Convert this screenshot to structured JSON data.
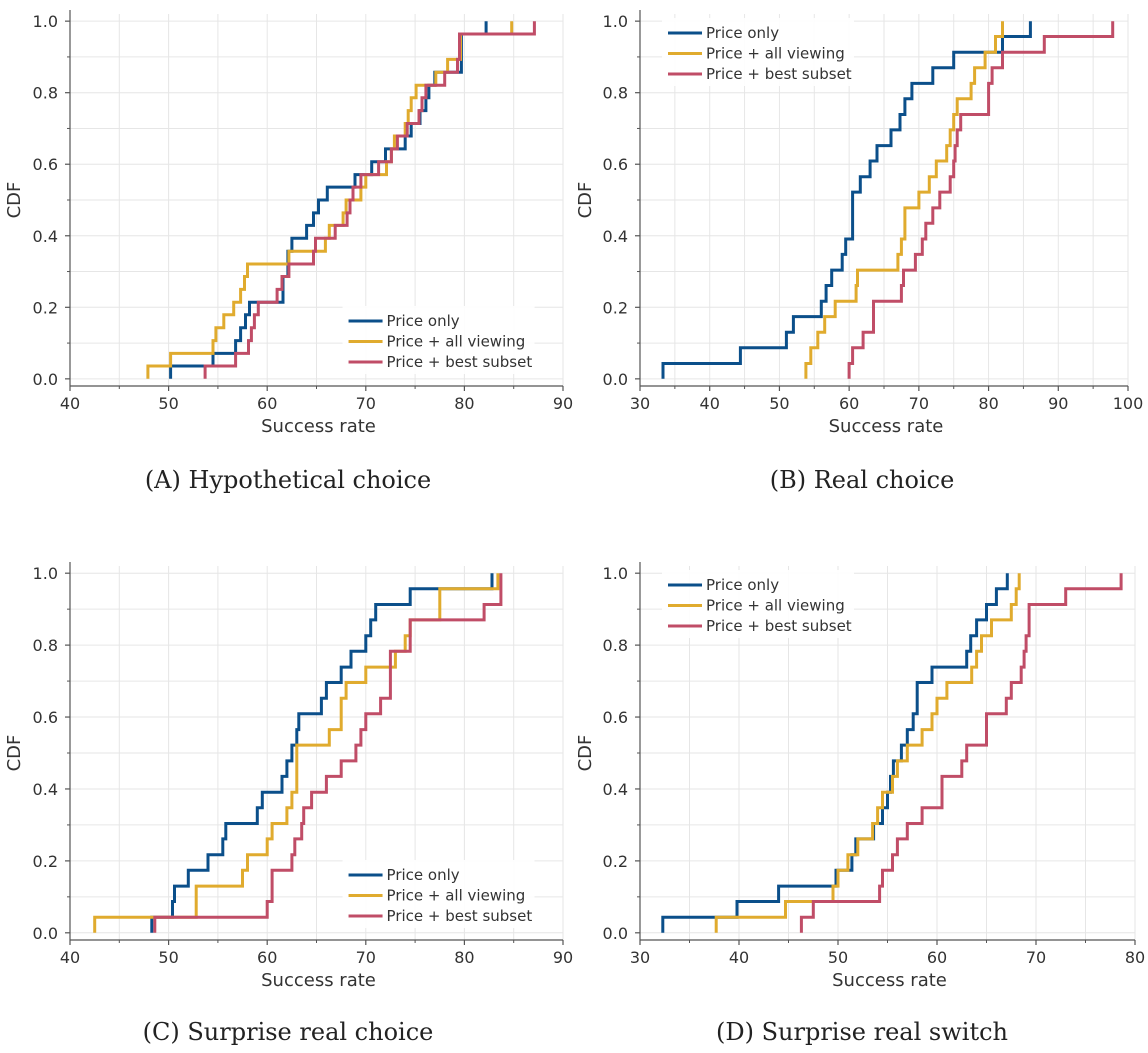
{
  "figure": {
    "panels": [
      {
        "label": "(A)",
        "caption": "Hypothetical choice"
      },
      {
        "label": "(B)",
        "caption": "Real choice"
      },
      {
        "label": "(C)",
        "caption": "Surprise real choice"
      },
      {
        "label": "(D)",
        "caption": "Surprise real switch"
      }
    ]
  },
  "colors": {
    "price_only": "#0b4f8a",
    "price_all_viewing": "#e0ab2e",
    "price_best_subset": "#c04d67",
    "grid": "#e6e6e6",
    "axis": "#555555"
  },
  "chart_data": [
    {
      "type": "line",
      "step": "post",
      "xlabel": "Success rate",
      "ylabel": "CDF",
      "xlim": [
        40,
        90
      ],
      "ylim": [
        0,
        1
      ],
      "xticks": [
        40,
        50,
        60,
        70,
        80,
        90
      ],
      "yticks": [
        0.0,
        0.2,
        0.4,
        0.6,
        0.8,
        1.0
      ],
      "grid": true,
      "legend_position": "bottom-right",
      "series": [
        {
          "name": "Price only",
          "x": [
            50.2,
            54.5,
            56.8,
            57.3,
            57.8,
            58.2,
            61.6,
            62.1,
            62.5,
            64.0,
            64.7,
            65.2,
            66.1,
            68.9,
            70.6,
            72.0,
            74.0,
            74.6,
            75.5,
            76.1,
            76.4,
            77.0,
            79.7,
            82.2
          ],
          "y": [
            0.036,
            0.071,
            0.107,
            0.143,
            0.179,
            0.214,
            0.286,
            0.357,
            0.393,
            0.429,
            0.464,
            0.5,
            0.536,
            0.571,
            0.607,
            0.643,
            0.679,
            0.714,
            0.75,
            0.786,
            0.821,
            0.857,
            0.964,
            1.0
          ]
        },
        {
          "name": "Price + all viewing",
          "x": [
            47.9,
            50.2,
            54.5,
            54.8,
            55.6,
            56.6,
            57.3,
            57.7,
            58.0,
            62.2,
            65.9,
            66.3,
            67.7,
            68.0,
            69.5,
            70.0,
            72.1,
            72.6,
            72.9,
            74.0,
            74.3,
            74.6,
            75.1,
            77.1,
            78.3,
            79.6,
            84.8
          ],
          "y": [
            0.036,
            0.071,
            0.107,
            0.143,
            0.179,
            0.214,
            0.25,
            0.286,
            0.321,
            0.357,
            0.393,
            0.429,
            0.464,
            0.5,
            0.536,
            0.571,
            0.607,
            0.643,
            0.679,
            0.714,
            0.75,
            0.786,
            0.821,
            0.857,
            0.893,
            0.964,
            1.0
          ]
        },
        {
          "name": "Price + best subset",
          "x": [
            53.7,
            56.8,
            58.1,
            58.4,
            58.7,
            59.1,
            61.0,
            61.5,
            62.2,
            64.7,
            64.9,
            66.9,
            68.1,
            68.4,
            68.7,
            69.5,
            71.3,
            72.6,
            73.2,
            74.2,
            75.4,
            75.7,
            76.1,
            78.0,
            79.3,
            79.5,
            87.1
          ],
          "y": [
            0.036,
            0.071,
            0.107,
            0.143,
            0.179,
            0.214,
            0.25,
            0.286,
            0.321,
            0.357,
            0.393,
            0.429,
            0.464,
            0.5,
            0.536,
            0.571,
            0.607,
            0.643,
            0.679,
            0.714,
            0.75,
            0.786,
            0.821,
            0.857,
            0.893,
            0.964,
            1.0
          ]
        }
      ]
    },
    {
      "type": "line",
      "step": "post",
      "xlabel": "Success rate",
      "ylabel": "CDF",
      "xlim": [
        30,
        100
      ],
      "ylim": [
        0,
        1
      ],
      "xticks": [
        30,
        40,
        50,
        60,
        70,
        80,
        90,
        100
      ],
      "yticks": [
        0.0,
        0.2,
        0.4,
        0.6,
        0.8,
        1.0
      ],
      "grid": true,
      "legend_position": "top-left",
      "series": [
        {
          "name": "Price only",
          "x": [
            33.3,
            44.4,
            51.0,
            52.0,
            56.0,
            56.7,
            57.5,
            59.0,
            59.5,
            60.5,
            61.0,
            61.6,
            63.0,
            64.0,
            66.0,
            67.3,
            68.0,
            69.0,
            69.5,
            72.0,
            75.0,
            82.0,
            86.0
          ],
          "y": [
            0.043,
            0.087,
            0.13,
            0.174,
            0.217,
            0.261,
            0.304,
            0.348,
            0.391,
            0.522,
            0.522,
            0.565,
            0.609,
            0.652,
            0.696,
            0.739,
            0.783,
            0.826,
            0.826,
            0.87,
            0.913,
            0.957,
            1.0
          ]
        },
        {
          "name": "Price + all viewing",
          "x": [
            53.8,
            54.5,
            55.5,
            56.5,
            58.0,
            61.0,
            61.2,
            61.8,
            67.0,
            67.5,
            68.0,
            69.5,
            70.0,
            71.5,
            72.5,
            74.0,
            74.5,
            75.0,
            75.5,
            77.5,
            78.0,
            79.5,
            81.0,
            81.5,
            82.0
          ],
          "y": [
            0.043,
            0.087,
            0.13,
            0.174,
            0.217,
            0.261,
            0.304,
            0.304,
            0.348,
            0.391,
            0.478,
            0.478,
            0.522,
            0.565,
            0.609,
            0.652,
            0.696,
            0.739,
            0.783,
            0.826,
            0.87,
            0.913,
            0.957,
            0.957,
            1.0
          ]
        },
        {
          "name": "Price + best subset",
          "x": [
            60.0,
            60.5,
            62.0,
            63.5,
            67.5,
            67.8,
            69.5,
            70.5,
            71.0,
            72.0,
            73.0,
            74.5,
            75.0,
            75.2,
            75.5,
            76.0,
            80.0,
            80.5,
            82.0,
            88.0,
            97.8
          ],
          "y": [
            0.043,
            0.087,
            0.13,
            0.217,
            0.261,
            0.304,
            0.348,
            0.391,
            0.435,
            0.478,
            0.522,
            0.565,
            0.609,
            0.652,
            0.696,
            0.739,
            0.826,
            0.87,
            0.913,
            0.957,
            1.0
          ]
        }
      ]
    },
    {
      "type": "line",
      "step": "post",
      "xlabel": "Success rate",
      "ylabel": "CDF",
      "xlim": [
        40,
        90
      ],
      "ylim": [
        0,
        1
      ],
      "xticks": [
        40,
        50,
        60,
        70,
        80,
        90
      ],
      "yticks": [
        0.0,
        0.2,
        0.4,
        0.6,
        0.8,
        1.0
      ],
      "grid": true,
      "legend_position": "bottom-right",
      "series": [
        {
          "name": "Price only",
          "x": [
            48.3,
            50.4,
            50.6,
            51.0,
            52.0,
            54.0,
            55.5,
            55.8,
            59.0,
            59.5,
            61.5,
            62.0,
            62.5,
            63.0,
            63.2,
            63.5,
            65.5,
            66.0,
            67.5,
            68.5,
            70.0,
            70.5,
            71.0,
            74.5,
            77.5,
            82.8
          ],
          "y": [
            0.043,
            0.087,
            0.13,
            0.13,
            0.174,
            0.217,
            0.261,
            0.304,
            0.348,
            0.391,
            0.435,
            0.478,
            0.522,
            0.565,
            0.609,
            0.609,
            0.652,
            0.696,
            0.739,
            0.783,
            0.826,
            0.87,
            0.913,
            0.957,
            0.957,
            1.0
          ]
        },
        {
          "name": "Price + all viewing",
          "x": [
            42.5,
            52.8,
            57.5,
            58.0,
            60.0,
            60.5,
            62.0,
            62.5,
            63.0,
            66.0,
            66.3,
            67.5,
            68.0,
            70.0,
            73.0,
            74.0,
            74.5,
            77.5,
            83.4
          ],
          "y": [
            0.043,
            0.13,
            0.174,
            0.217,
            0.261,
            0.304,
            0.348,
            0.391,
            0.522,
            0.522,
            0.565,
            0.652,
            0.696,
            0.739,
            0.783,
            0.826,
            0.87,
            0.957,
            1.0
          ]
        },
        {
          "name": "Price + best subset",
          "x": [
            48.6,
            60.0,
            60.5,
            62.5,
            62.8,
            63.5,
            63.7,
            64.5,
            66.0,
            67.5,
            69.0,
            69.5,
            70.0,
            71.5,
            72.5,
            74.5,
            82.0,
            83.7
          ],
          "y": [
            0.043,
            0.087,
            0.174,
            0.217,
            0.261,
            0.304,
            0.348,
            0.391,
            0.435,
            0.478,
            0.522,
            0.565,
            0.609,
            0.652,
            0.783,
            0.87,
            0.913,
            1.0
          ]
        }
      ]
    },
    {
      "type": "line",
      "step": "post",
      "xlabel": "Success rate",
      "ylabel": "CDF",
      "xlim": [
        30,
        80
      ],
      "ylim": [
        0,
        1
      ],
      "xticks": [
        30,
        40,
        50,
        60,
        70,
        80
      ],
      "yticks": [
        0.0,
        0.2,
        0.4,
        0.6,
        0.8,
        1.0
      ],
      "grid": true,
      "legend_position": "top-left",
      "series": [
        {
          "name": "Price only",
          "x": [
            32.3,
            39.8,
            44.0,
            49.8,
            51.4,
            51.8,
            53.6,
            54.5,
            55.0,
            55.3,
            55.6,
            56.4,
            57.0,
            57.6,
            58.0,
            59.5,
            63.0,
            63.4,
            64.0,
            65.0,
            66.0,
            66.7,
            67.1
          ],
          "y": [
            0.043,
            0.087,
            0.13,
            0.174,
            0.217,
            0.261,
            0.304,
            0.348,
            0.391,
            0.435,
            0.478,
            0.522,
            0.565,
            0.609,
            0.696,
            0.739,
            0.783,
            0.826,
            0.87,
            0.913,
            0.957,
            0.957,
            1.0
          ]
        },
        {
          "name": "Price + all viewing",
          "x": [
            37.7,
            44.7,
            49.5,
            50.0,
            51.0,
            52.0,
            53.5,
            54.0,
            54.5,
            55.5,
            56.0,
            57.0,
            58.5,
            59.5,
            60.0,
            61.0,
            63.5,
            64.0,
            64.5,
            65.5,
            67.5,
            68.0,
            68.3
          ],
          "y": [
            0.043,
            0.087,
            0.13,
            0.174,
            0.217,
            0.261,
            0.304,
            0.348,
            0.391,
            0.435,
            0.478,
            0.522,
            0.565,
            0.609,
            0.652,
            0.696,
            0.739,
            0.783,
            0.826,
            0.87,
            0.913,
            0.957,
            1.0
          ]
        },
        {
          "name": "Price + best subset",
          "x": [
            46.3,
            47.5,
            54.2,
            54.5,
            55.5,
            56.0,
            57.0,
            58.5,
            60.5,
            62.5,
            63.0,
            65.0,
            67.0,
            67.5,
            68.5,
            68.8,
            69.0,
            69.3,
            73.0,
            78.6
          ],
          "y": [
            0.043,
            0.087,
            0.13,
            0.174,
            0.217,
            0.261,
            0.304,
            0.348,
            0.435,
            0.478,
            0.522,
            0.609,
            0.652,
            0.696,
            0.739,
            0.783,
            0.826,
            0.913,
            0.957,
            1.0
          ]
        }
      ]
    }
  ]
}
